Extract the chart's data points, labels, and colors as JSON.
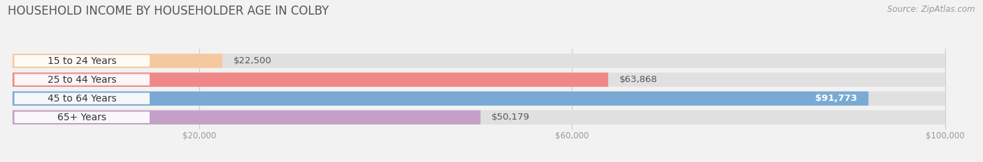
{
  "title": "HOUSEHOLD INCOME BY HOUSEHOLDER AGE IN COLBY",
  "source": "Source: ZipAtlas.com",
  "categories": [
    "15 to 24 Years",
    "25 to 44 Years",
    "45 to 64 Years",
    "65+ Years"
  ],
  "values": [
    22500,
    63868,
    91773,
    50179
  ],
  "bar_colors": [
    "#f5c9a0",
    "#f08888",
    "#7aaad4",
    "#c4a0c8"
  ],
  "value_inside": [
    false,
    false,
    true,
    false
  ],
  "xlim": [
    0,
    100000
  ],
  "xticks": [
    20000,
    60000,
    100000
  ],
  "xtick_labels": [
    "$20,000",
    "$60,000",
    "$100,000"
  ],
  "bar_height": 0.65,
  "background_color": "#f2f2f2",
  "bar_bg_color": "#e0e0e0",
  "title_fontsize": 12,
  "label_fontsize": 10,
  "value_fontsize": 9.5,
  "source_fontsize": 8.5
}
